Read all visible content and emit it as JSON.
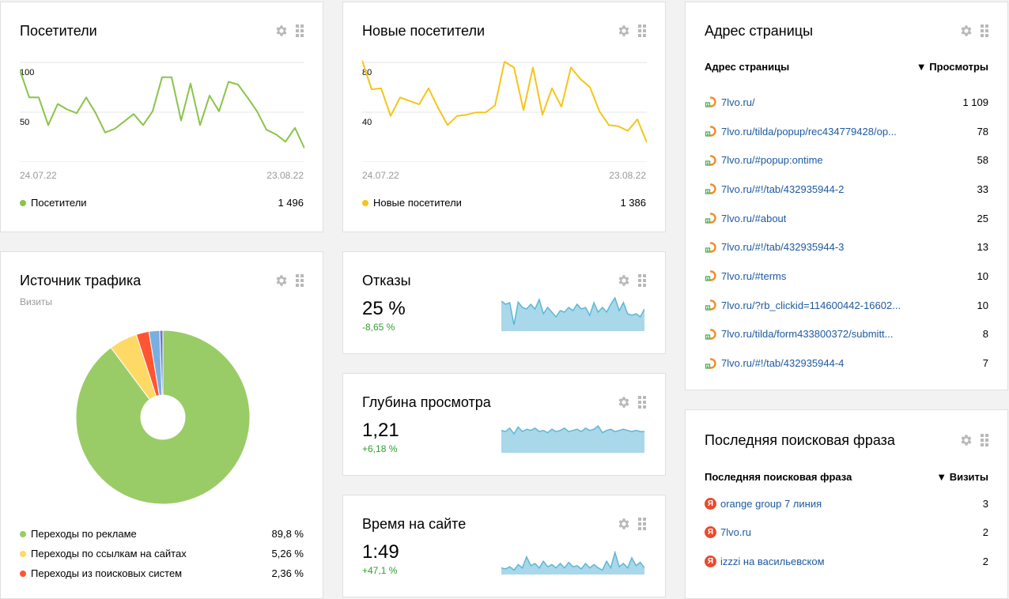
{
  "visitors": {
    "title": "Посетители",
    "y_labels": [
      "100",
      "50"
    ],
    "date_start": "24.07.22",
    "date_end": "23.08.22",
    "legend_label": "Посетители",
    "legend_value": "1 496",
    "color": "#8bc34a"
  },
  "new_visitors": {
    "title": "Новые посетители",
    "y_labels": [
      "80",
      "40"
    ],
    "date_start": "24.07.22",
    "date_end": "23.08.22",
    "legend_label": "Новые посетители",
    "legend_value": "1 386",
    "color": "#f5c518"
  },
  "traffic_source": {
    "title": "Источник трафика",
    "subtitle": "Визиты",
    "items": [
      {
        "label": "Переходы по рекламе",
        "value": "89,8 %",
        "color": "#99cc66"
      },
      {
        "label": "Переходы по ссылкам на сайтах",
        "value": "5,26 %",
        "color": "#ffd966"
      },
      {
        "label": "Переходы из поисковых систем",
        "value": "2,36 %",
        "color": "#ff5533"
      }
    ]
  },
  "bounces": {
    "title": "Отказы",
    "value": "25 %",
    "delta": "-8,65 %"
  },
  "depth": {
    "title": "Глубина просмотра",
    "value": "1,21",
    "delta": "+6,18 %"
  },
  "time_on_site": {
    "title": "Время на сайте",
    "value": "1:49",
    "delta": "+47,1 %"
  },
  "page_address": {
    "title": "Адрес страницы",
    "col_name": "Адрес страницы",
    "col_value": "▼ Просмотры",
    "rows": [
      {
        "url": "7lvo.ru/",
        "views": "1 109"
      },
      {
        "url": "7lvo.ru/tilda/popup/rec434779428/op...",
        "views": "78"
      },
      {
        "url": "7lvo.ru/#popup:ontime",
        "views": "58"
      },
      {
        "url": "7lvo.ru/#!/tab/432935944-2",
        "views": "33"
      },
      {
        "url": "7lvo.ru/#about",
        "views": "25"
      },
      {
        "url": "7lvo.ru/#!/tab/432935944-3",
        "views": "13"
      },
      {
        "url": "7lvo.ru/#terms",
        "views": "10"
      },
      {
        "url": "7lvo.ru/?rb_clickid=114600442-16602...",
        "views": "10"
      },
      {
        "url": "7lvo.ru/tilda/form433800372/submitt...",
        "views": "8"
      },
      {
        "url": "7lvo.ru/#!/tab/432935944-4",
        "views": "7"
      }
    ]
  },
  "search_phrase": {
    "title": "Последняя поисковая фраза",
    "col_name": "Последняя поисковая фраза",
    "col_value": "▼ Визиты",
    "rows": [
      {
        "phrase": "orange group 7 линия",
        "visits": "3"
      },
      {
        "phrase": "7lvo.ru",
        "visits": "2"
      },
      {
        "phrase": "izzzi на васильевском",
        "visits": "2"
      }
    ]
  },
  "chart_data": [
    {
      "type": "line",
      "title": "Посетители",
      "x": [
        "24.07.22",
        "",
        "",
        "",
        "",
        "",
        "",
        "",
        "",
        "",
        "",
        "",
        "",
        "",
        "",
        "",
        "",
        "",
        "",
        "",
        "",
        "",
        "",
        "",
        "",
        "",
        "",
        "",
        "",
        "",
        "23.08.22"
      ],
      "series": [
        {
          "name": "Посетители",
          "values": [
            100,
            70,
            70,
            40,
            63,
            57,
            53,
            70,
            53,
            32,
            36,
            44,
            52,
            40,
            55,
            92,
            92,
            45,
            85,
            40,
            72,
            55,
            87,
            84,
            70,
            55,
            35,
            30,
            22,
            37,
            15
          ]
        }
      ],
      "ylim": [
        0,
        120
      ],
      "y_ticks": [
        50,
        100
      ]
    },
    {
      "type": "line",
      "title": "Новые посетители",
      "x": [
        "24.07.22",
        "",
        "",
        "",
        "",
        "",
        "",
        "",
        "",
        "",
        "",
        "",
        "",
        "",
        "",
        "",
        "",
        "",
        "",
        "",
        "",
        "",
        "",
        "",
        "",
        "",
        "",
        "",
        "",
        "",
        "23.08.22"
      ],
      "series": [
        {
          "name": "Новые посетители",
          "values": [
            88,
            63,
            64,
            40,
            56,
            53,
            50,
            64,
            47,
            32,
            40,
            41,
            43,
            43,
            49,
            87,
            82,
            45,
            82,
            41,
            64,
            48,
            82,
            72,
            65,
            44,
            32,
            31,
            27,
            37,
            17
          ]
        }
      ],
      "ylim": [
        0,
        96
      ],
      "y_ticks": [
        40,
        80
      ]
    },
    {
      "type": "pie",
      "title": "Источник трафика",
      "categories": [
        "Переходы по рекламе",
        "Переходы по ссылкам на сайтах",
        "Переходы из поисковых систем",
        "",
        ""
      ],
      "values": [
        89.8,
        5.26,
        2.36,
        2.0,
        0.58
      ]
    },
    {
      "type": "area",
      "title": "Отказы",
      "values": [
        0.95,
        0.85,
        0.9,
        0.2,
        0.92,
        0.75,
        0.7,
        0.85,
        0.7,
        1.0,
        0.55,
        0.75,
        0.6,
        0.45,
        0.65,
        0.6,
        0.75,
        0.65,
        0.85,
        0.7,
        0.75,
        0.5,
        0.9,
        0.6,
        0.75,
        0.6,
        0.85,
        1.05,
        0.65,
        0.9,
        0.55,
        0.5,
        0.55,
        0.45,
        0.7
      ]
    },
    {
      "type": "area",
      "title": "Глубина просмотра",
      "values": [
        1.0,
        0.95,
        1.1,
        0.85,
        1.15,
        0.95,
        1.05,
        1.0,
        1.1,
        0.95,
        1.0,
        0.9,
        1.05,
        0.95,
        1.0,
        1.1,
        0.95,
        1.0,
        1.05,
        0.95,
        1.1,
        1.0,
        1.05,
        1.2,
        0.9,
        1.0,
        1.05,
        0.95,
        1.0,
        1.05,
        1.0,
        0.95,
        1.0,
        0.95,
        0.95
      ]
    },
    {
      "type": "area",
      "title": "Время на сайте",
      "values": [
        0.3,
        0.25,
        0.35,
        0.2,
        0.45,
        0.3,
        0.8,
        0.4,
        0.5,
        0.3,
        0.6,
        0.35,
        0.45,
        0.3,
        0.5,
        0.3,
        0.55,
        0.35,
        0.4,
        0.25,
        0.5,
        0.3,
        0.45,
        0.3,
        0.2,
        0.6,
        0.3,
        1.0,
        0.35,
        0.5,
        0.3,
        0.75,
        0.4,
        0.55,
        0.3
      ]
    }
  ]
}
